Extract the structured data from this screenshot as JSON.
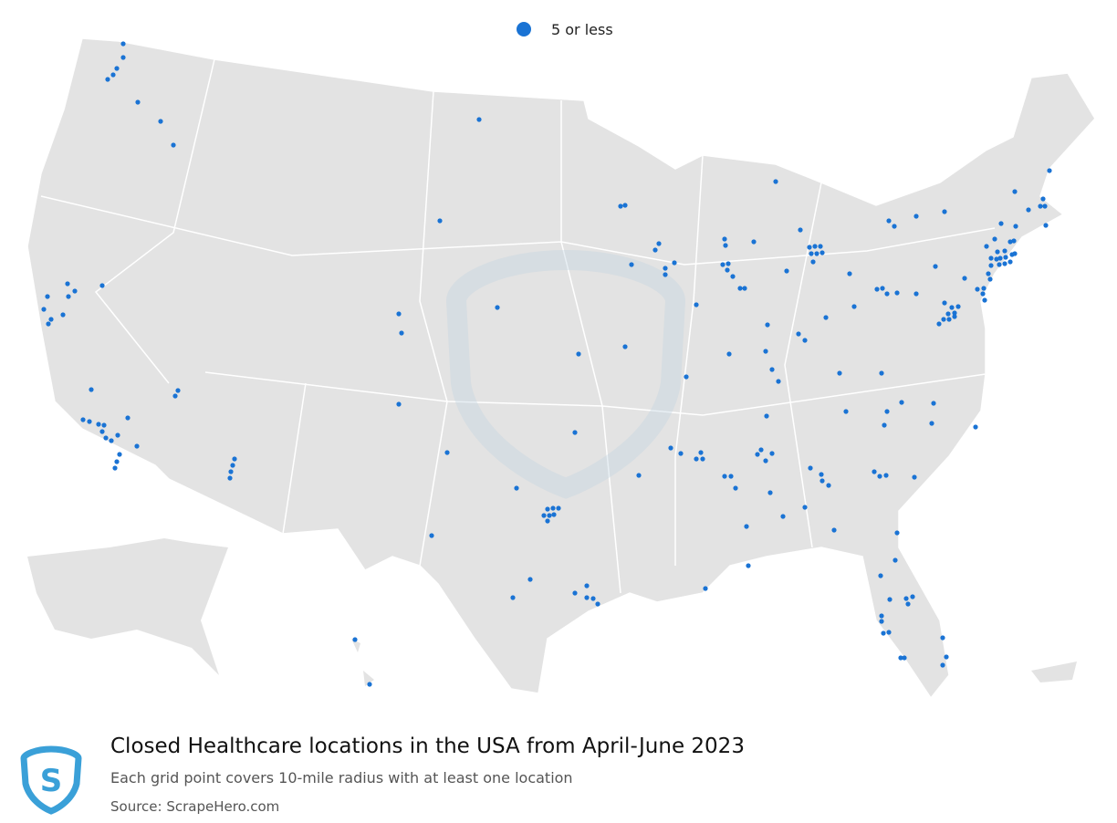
{
  "legend": {
    "label": "5 or less"
  },
  "footer": {
    "title": "Closed Healthcare locations in the USA from April-June 2023",
    "subtitle": "Each grid point covers 10-mile radius with at least one location",
    "source": "Source: ScrapeHero.com"
  }
}
